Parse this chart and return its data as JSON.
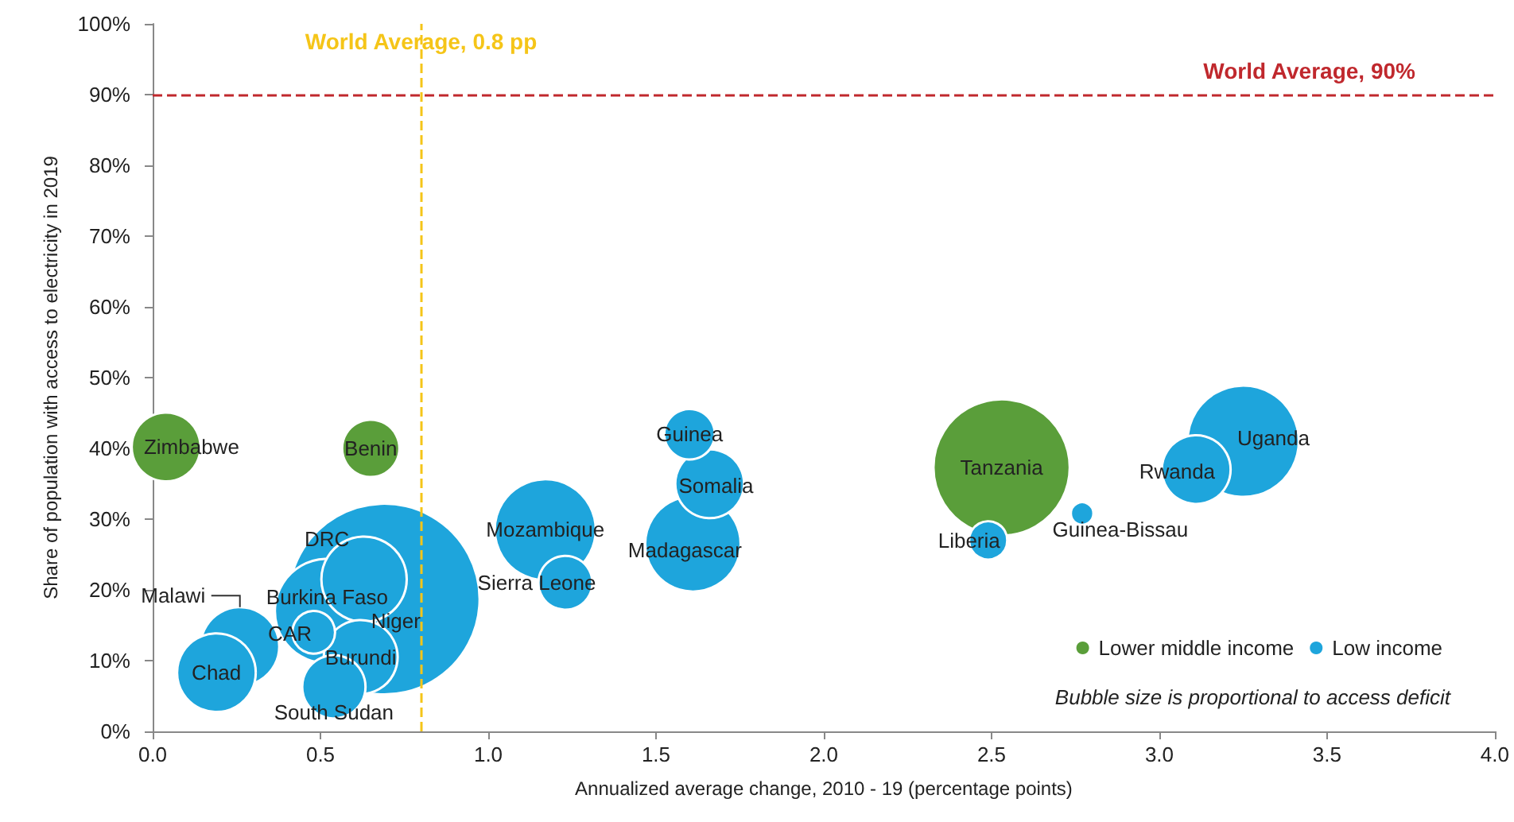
{
  "chart_data": {
    "type": "bubble",
    "xlabel": "Annualized average change, 2010 - 19 (percentage points)",
    "ylabel": "Share of population with access to electricity in 2019",
    "xlim": [
      0,
      4
    ],
    "ylim": [
      0,
      100
    ],
    "xticks": [
      {
        "value": 0,
        "label": "0.0"
      },
      {
        "value": 0.5,
        "label": "0.5"
      },
      {
        "value": 1,
        "label": "1.0"
      },
      {
        "value": 1.5,
        "label": "1.5"
      },
      {
        "value": 2,
        "label": "2.0"
      },
      {
        "value": 2.5,
        "label": "2.5"
      },
      {
        "value": 3,
        "label": "3.0"
      },
      {
        "value": 3.5,
        "label": "3.5"
      },
      {
        "value": 4,
        "label": "4.0"
      }
    ],
    "yticks": [
      {
        "value": 0,
        "label": "0%"
      },
      {
        "value": 10,
        "label": "10%"
      },
      {
        "value": 20,
        "label": "20%"
      },
      {
        "value": 30,
        "label": "30%"
      },
      {
        "value": 40,
        "label": "40%"
      },
      {
        "value": 50,
        "label": "50%"
      },
      {
        "value": 60,
        "label": "60%"
      },
      {
        "value": 70,
        "label": "70%"
      },
      {
        "value": 80,
        "label": "80%"
      },
      {
        "value": 90,
        "label": "90%"
      },
      {
        "value": 100,
        "label": "100%"
      }
    ],
    "grid": false,
    "legend": "bottom right",
    "series": [
      {
        "name": "Lower middle income",
        "color": "#5a9e3a",
        "x": [
          0.04,
          0.65,
          2.53
        ],
        "values": [
          40.2,
          40,
          37.3
        ],
        "sizes": [
          0.13,
          0.09,
          0.51
        ]
      },
      {
        "name": "Low income",
        "color": "#1ea5dc",
        "x": [
          0.69,
          0.52,
          0.63,
          3.25,
          1.17,
          1.61,
          0.62,
          0.26,
          0.19,
          1.66,
          3.11,
          0.54,
          1.23,
          1.6,
          0.48,
          2.49,
          2.77
        ],
        "values": [
          18.7,
          17,
          21.5,
          41,
          28.5,
          26.5,
          10.5,
          12,
          8.3,
          35,
          37,
          6.3,
          21,
          42,
          14,
          27,
          30.8
        ],
        "sizes": [
          1,
          0.3,
          0.2,
          0.34,
          0.28,
          0.25,
          0.15,
          0.17,
          0.17,
          0.13,
          0.13,
          0.11,
          0.08,
          0.07,
          0.05,
          0.04,
          0.014
        ]
      }
    ],
    "ref_lines": [
      {
        "axis": "x",
        "value": 0.8,
        "label": "World Average, 0.8 pp",
        "color": "#f5c518",
        "line_style": "dashed"
      },
      {
        "axis": "y",
        "value": 90,
        "label": "World Average, 90%",
        "color": "#c0282d",
        "line_style": "dashed"
      }
    ],
    "annotations": [
      {
        "text": "Zimbabwe",
        "x": 0.04,
        "y": 40.2
      },
      {
        "text": "Benin",
        "x": 0.65,
        "y": 40
      },
      {
        "text": "Tanzania",
        "x": 2.53,
        "y": 37.3
      },
      {
        "text": "DRC",
        "x": 0.69,
        "y": 18.7
      },
      {
        "text": "Niger",
        "x": 0.63,
        "y": 21.5
      },
      {
        "text": "Burkina Faso",
        "x": 0.52,
        "y": 17
      },
      {
        "text": "Uganda",
        "x": 3.25,
        "y": 41
      },
      {
        "text": "Mozambique",
        "x": 1.17,
        "y": 28.5
      },
      {
        "text": "Madagascar",
        "x": 1.61,
        "y": 26.5
      },
      {
        "text": "Burundi",
        "x": 0.62,
        "y": 10.5
      },
      {
        "text": "Malawi",
        "x": 0.26,
        "y": 12
      },
      {
        "text": "Chad",
        "x": 0.19,
        "y": 8.3
      },
      {
        "text": "Somalia",
        "x": 1.66,
        "y": 35
      },
      {
        "text": "Rwanda",
        "x": 3.11,
        "y": 37
      },
      {
        "text": "South Sudan",
        "x": 0.54,
        "y": 6.3
      },
      {
        "text": "Sierra Leone",
        "x": 1.23,
        "y": 21
      },
      {
        "text": "Guinea",
        "x": 1.6,
        "y": 42
      },
      {
        "text": "CAR",
        "x": 0.48,
        "y": 14
      },
      {
        "text": "Liberia",
        "x": 2.49,
        "y": 27
      },
      {
        "text": "Guinea-Bissau",
        "x": 2.77,
        "y": 30.8
      },
      "Bubble size is proportional to access deficit"
    ]
  }
}
